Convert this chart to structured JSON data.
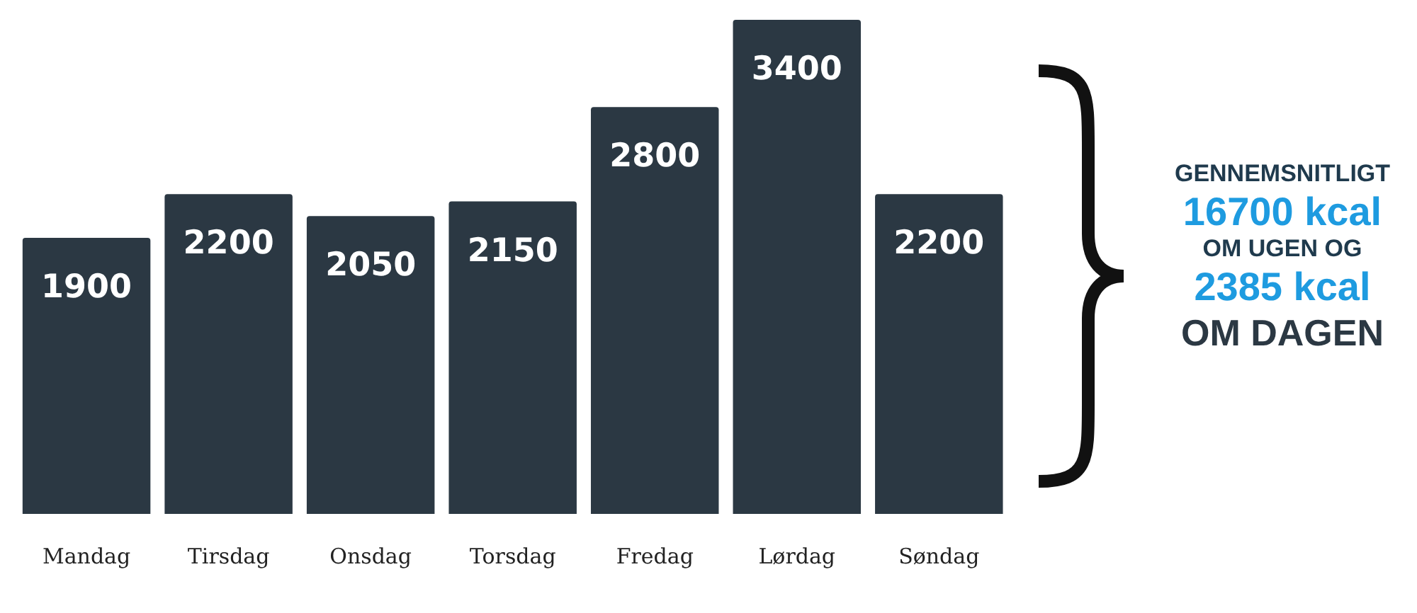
{
  "chart_data": {
    "type": "bar",
    "categories": [
      "Mandag",
      "Tirsdag",
      "Onsdag",
      "Torsdag",
      "Fredag",
      "Lørdag",
      "Søndag"
    ],
    "values": [
      1900,
      2200,
      2050,
      2150,
      2800,
      3400,
      2200
    ],
    "color": "#2b3843",
    "data_labels": true,
    "tick_labels": "x",
    "grid": false,
    "legend": false,
    "annotations": [
      "GENNEMSNITLIGT",
      "16700 kcal",
      "OM UGEN OG",
      "2385 kcal",
      "OM DAGEN"
    ]
  }
}
